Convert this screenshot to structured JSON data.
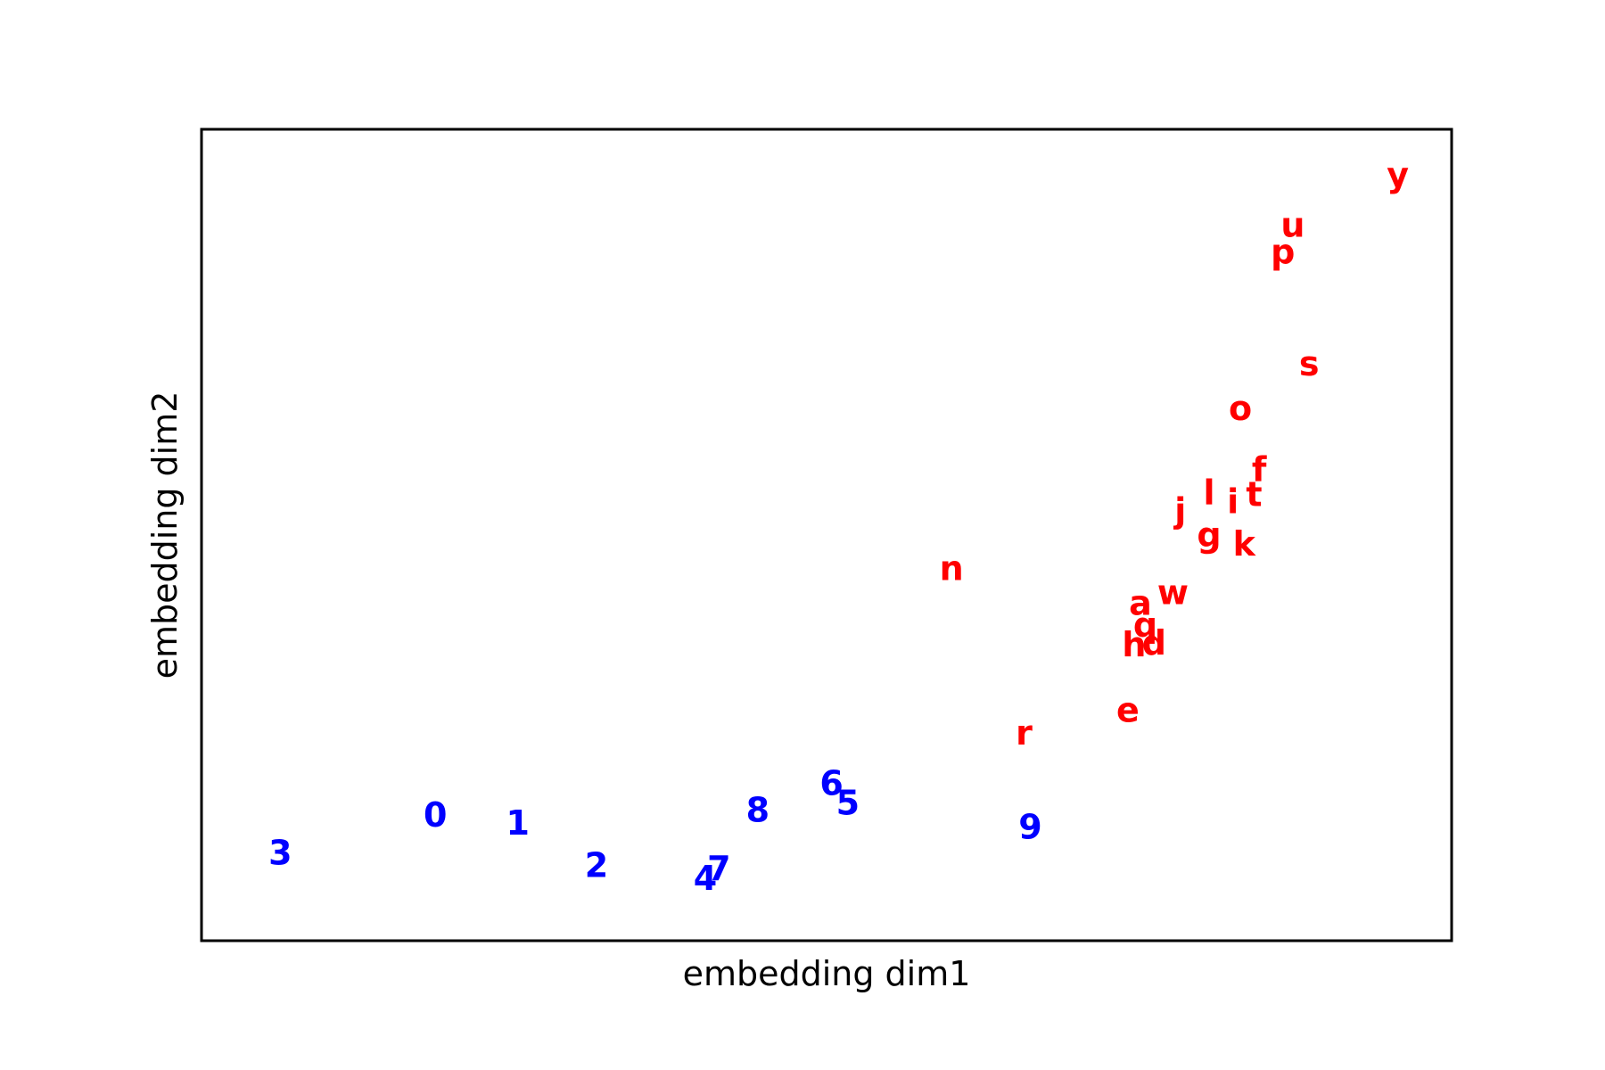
{
  "chart_data": {
    "type": "scatter",
    "title": "",
    "xlabel": "embedding dim1",
    "ylabel": "embedding dim2",
    "xlim": [
      0,
      100
    ],
    "ylim": [
      0,
      100
    ],
    "grid": false,
    "ticks": false,
    "colors": {
      "digits": "#0000ff",
      "letters": "#ff0000",
      "frame": "#000000"
    },
    "series": [
      {
        "color": "#0000ff",
        "points": [
          {
            "label": "3",
            "x": 6.3,
            "y": 10.8
          },
          {
            "label": "0",
            "x": 18.7,
            "y": 15.5
          },
          {
            "label": "1",
            "x": 25.3,
            "y": 14.5
          },
          {
            "label": "2",
            "x": 31.6,
            "y": 9.3
          },
          {
            "label": "4",
            "x": 40.3,
            "y": 7.7
          },
          {
            "label": "7",
            "x": 41.4,
            "y": 8.9
          },
          {
            "label": "8",
            "x": 44.5,
            "y": 16.1
          },
          {
            "label": "6",
            "x": 50.4,
            "y": 19.4
          },
          {
            "label": "5",
            "x": 51.7,
            "y": 17.0
          },
          {
            "label": "9",
            "x": 66.3,
            "y": 14.0
          }
        ]
      },
      {
        "color": "#ff0000",
        "points": [
          {
            "label": "y",
            "x": 95.7,
            "y": 94.4
          },
          {
            "label": "u",
            "x": 87.3,
            "y": 88.2
          },
          {
            "label": "p",
            "x": 86.5,
            "y": 84.9
          },
          {
            "label": "s",
            "x": 88.6,
            "y": 71.1
          },
          {
            "label": "o",
            "x": 83.1,
            "y": 65.6
          },
          {
            "label": "f",
            "x": 84.6,
            "y": 58.1
          },
          {
            "label": "t",
            "x": 84.2,
            "y": 55.0
          },
          {
            "label": "i",
            "x": 82.5,
            "y": 54.1
          },
          {
            "label": "l",
            "x": 80.6,
            "y": 55.2
          },
          {
            "label": "j",
            "x": 78.3,
            "y": 53.0
          },
          {
            "label": "g",
            "x": 80.6,
            "y": 50.0
          },
          {
            "label": "k",
            "x": 83.4,
            "y": 48.9
          },
          {
            "label": "n",
            "x": 60.0,
            "y": 45.9
          },
          {
            "label": "w",
            "x": 77.7,
            "y": 42.9
          },
          {
            "label": "a",
            "x": 75.1,
            "y": 41.6
          },
          {
            "label": "q",
            "x": 75.5,
            "y": 38.9
          },
          {
            "label": "d",
            "x": 76.2,
            "y": 36.7
          },
          {
            "label": "h",
            "x": 74.6,
            "y": 36.5
          },
          {
            "label": "e",
            "x": 74.1,
            "y": 28.4
          },
          {
            "label": "r",
            "x": 65.8,
            "y": 25.6
          }
        ]
      }
    ]
  }
}
